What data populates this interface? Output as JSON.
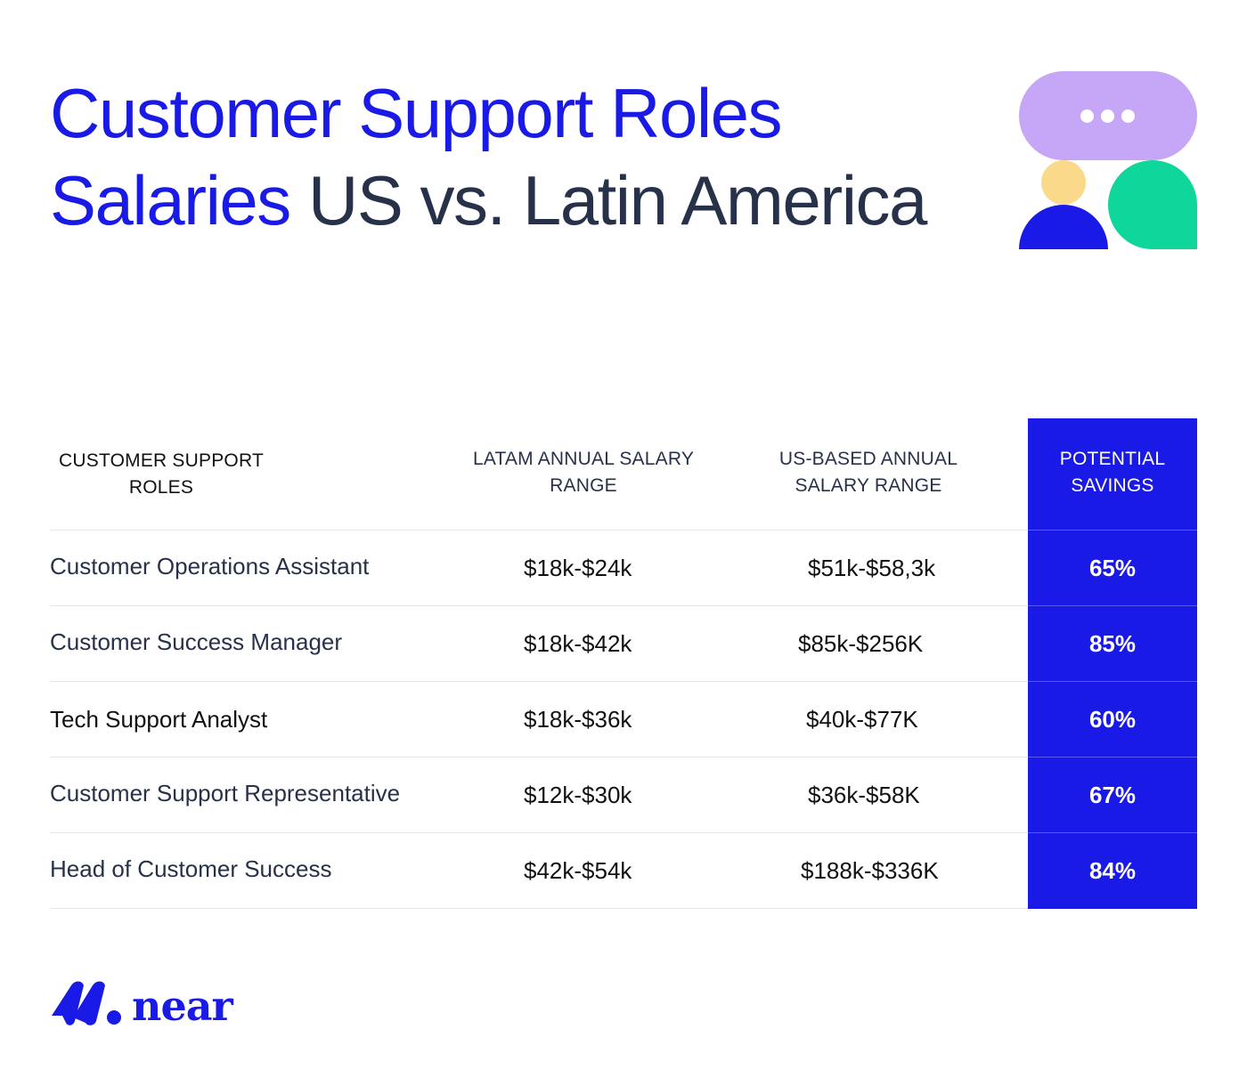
{
  "title": {
    "line1": "Customer Support Roles",
    "line2_highlight": "Salaries",
    "line2_rest": " US vs. Latin America"
  },
  "table": {
    "headers": {
      "role": [
        "CUSTOMER SUPPORT",
        "ROLES"
      ],
      "latam": [
        "LATAM ANNUAL SALARY",
        "RANGE"
      ],
      "us": [
        "US-BASED ANNUAL",
        "SALARY RANGE"
      ],
      "savings": [
        "POTENTIAL",
        "SAVINGS"
      ]
    },
    "rows": [
      {
        "role": "Customer Operations Assistant",
        "latam": "$18k-$24k",
        "us": "$51k-$58,3k",
        "savings": "65%"
      },
      {
        "role": "Customer Success Manager",
        "latam": "$18k-$42k",
        "us": "$85k-$256K",
        "savings": "85%"
      },
      {
        "role": "Tech Support Analyst",
        "latam": "$18k-$36k",
        "us": "$40k-$77K",
        "savings": "60%"
      },
      {
        "role": "Customer Support Representative",
        "latam": "$12k-$30k",
        "us": "$36k-$58K",
        "savings": "67%"
      },
      {
        "role": "Head of Customer Success",
        "latam": "$42k-$54k",
        "us": "$188k-$336K",
        "savings": "84%"
      }
    ]
  },
  "brand": {
    "name": "near",
    "colors": {
      "primary": "#1a1ae6",
      "text_dark": "#27324a",
      "purple": "#c6a6f7",
      "green": "#0fd69a",
      "yellow": "#fad98a"
    }
  },
  "icons": [
    "chat-bubble-icon",
    "person-icon",
    "speech-leaf-icon",
    "near-logo-icon"
  ]
}
